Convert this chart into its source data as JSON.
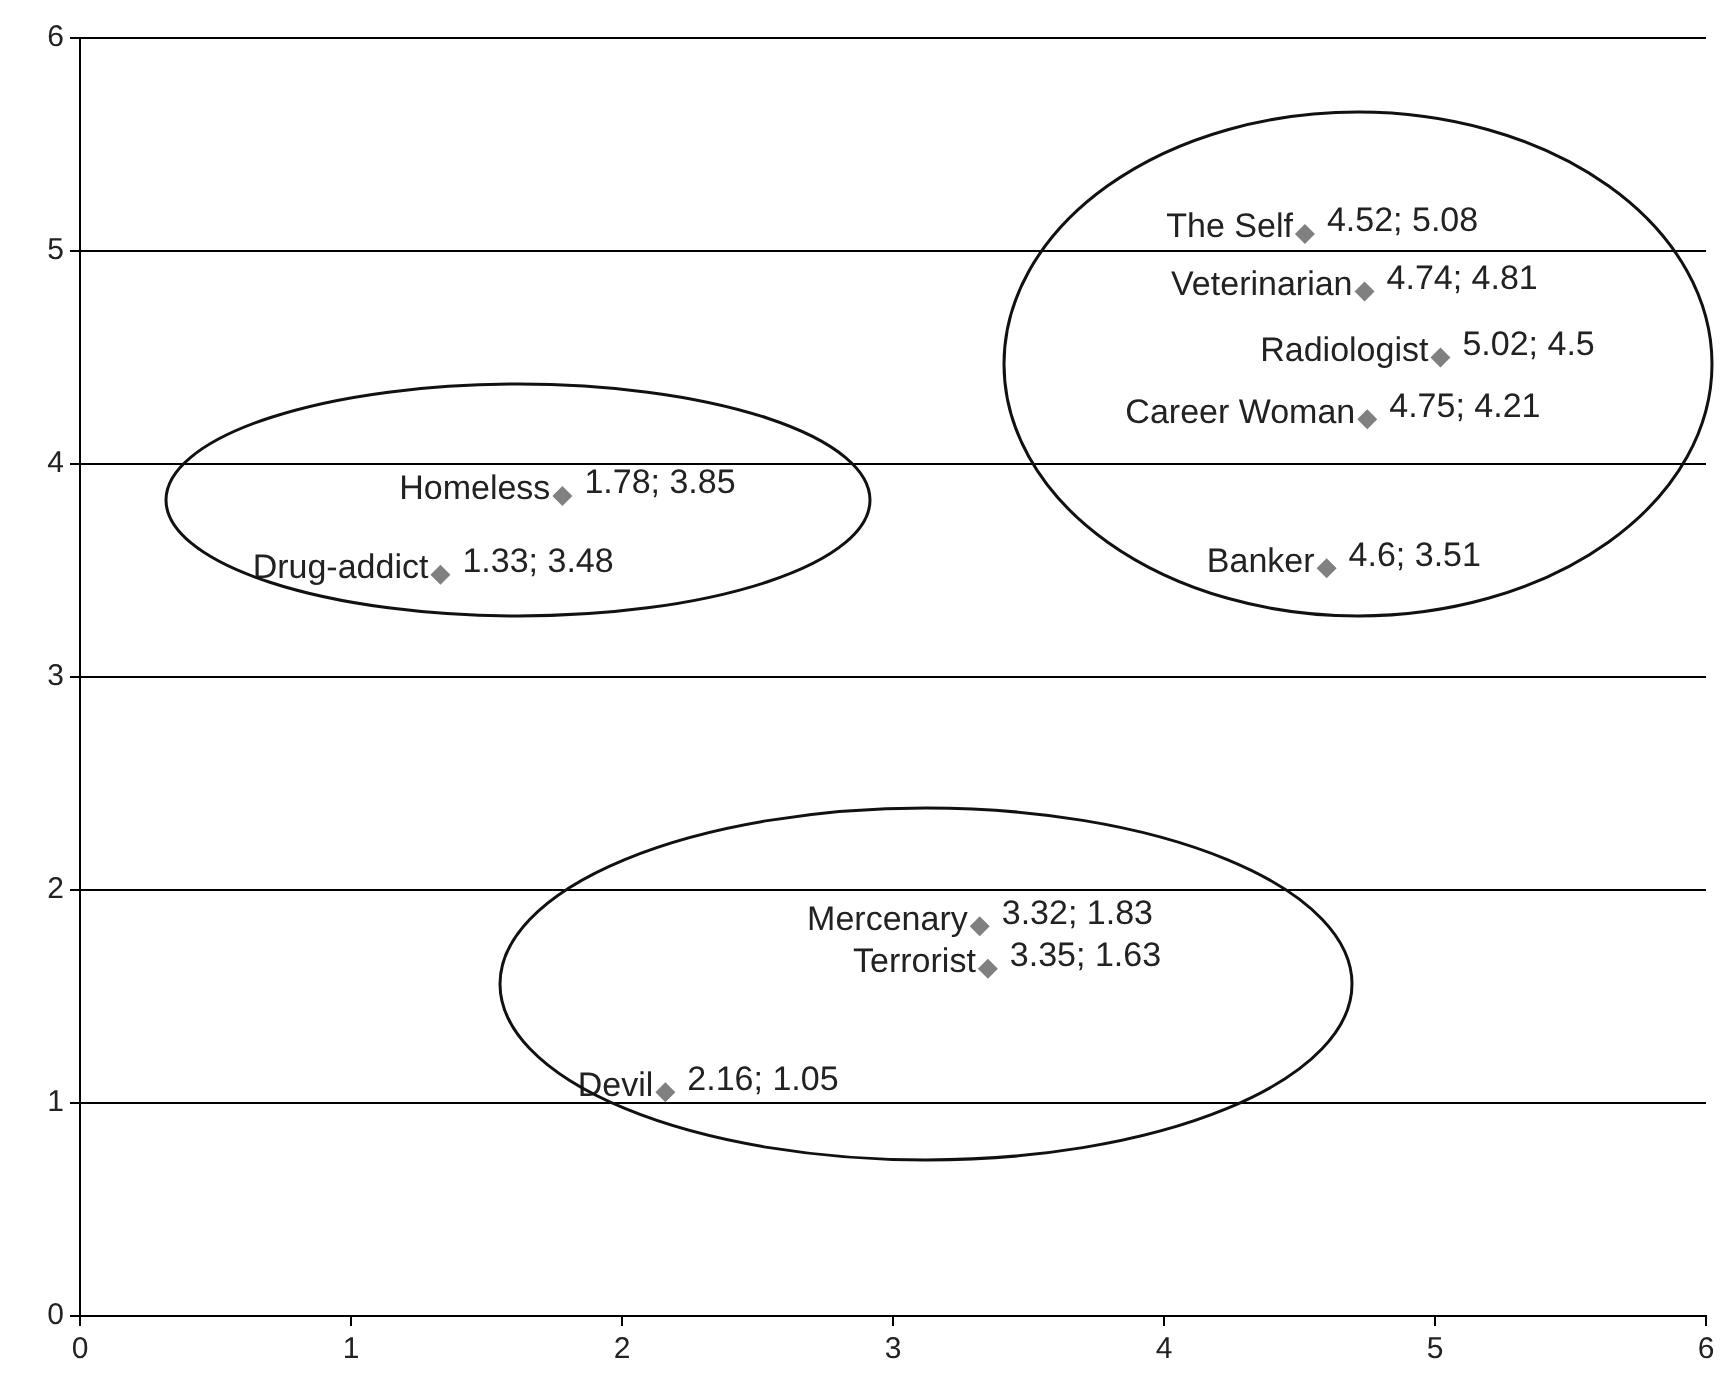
{
  "chart_data": {
    "type": "scatter",
    "x": [
      4.52,
      4.74,
      5.02,
      4.75,
      4.6,
      1.78,
      1.33,
      3.32,
      3.35,
      2.16
    ],
    "values": [
      5.08,
      4.81,
      4.5,
      4.21,
      3.51,
      3.85,
      3.48,
      1.83,
      1.63,
      1.05
    ],
    "value_labels": [
      "4.52; 5.08",
      "4.74; 4.81",
      "5.02; 4.5",
      "4.75; 4.21",
      "4.6; 3.51",
      "1.78; 3.85",
      "1.33; 3.48",
      "3.32; 1.83",
      "3.35; 1.63",
      "2.16; 1.05"
    ],
    "annotations": [
      {
        "text": "The Self",
        "x": 4.52,
        "y": 5.08
      },
      {
        "text": "Veterinarian",
        "x": 4.74,
        "y": 4.81
      },
      {
        "text": "Radiologist",
        "x": 5.02,
        "y": 4.5
      },
      {
        "text": "Career Woman",
        "x": 4.75,
        "y": 4.21
      },
      {
        "text": "Banker",
        "x": 4.6,
        "y": 3.51
      },
      {
        "text": "Homeless",
        "x": 1.78,
        "y": 3.85
      },
      {
        "text": "Drug-addict",
        "x": 1.33,
        "y": 3.48
      },
      {
        "text": "Mercenary",
        "x": 3.32,
        "y": 1.83
      },
      {
        "text": "Terrorist",
        "x": 3.35,
        "y": 1.63
      },
      {
        "text": "Devil",
        "x": 2.16,
        "y": 1.05
      }
    ],
    "color": "#808080",
    "marker": "diamond",
    "xlim": [
      0,
      6
    ],
    "ylim": [
      0,
      6
    ],
    "xticks": [
      0,
      1,
      2,
      3,
      4,
      5,
      6
    ],
    "yticks": [
      0,
      1,
      2,
      3,
      4,
      5,
      6
    ],
    "grid": "y"
  }
}
